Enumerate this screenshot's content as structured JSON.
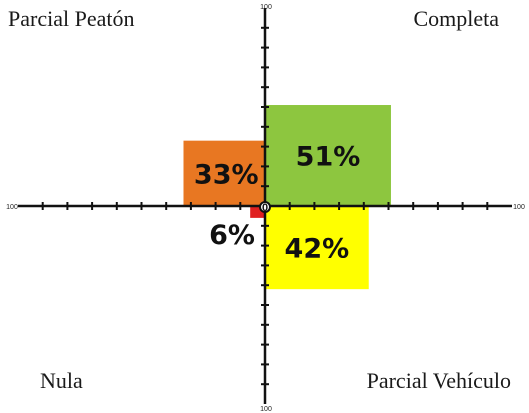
{
  "chart_data": {
    "type": "quadrant-area",
    "quadrant_labels": {
      "top_left": "Parcial Peatón",
      "top_right": "Completa",
      "bottom_left": "Nula",
      "bottom_right": "Parcial Vehículo"
    },
    "axis_range": [
      -100,
      100
    ],
    "axis_end_labels": {
      "top": "100",
      "bottom": "100",
      "left": "100",
      "right": "100"
    },
    "origin_label": "0",
    "tick_step": 10,
    "series": [
      {
        "quadrant": "top_right",
        "label": "51%",
        "value": 51,
        "x_extent": 51,
        "y_extent": 51,
        "color": "#8dc63f"
      },
      {
        "quadrant": "bottom_right",
        "label": "42%",
        "value": 42,
        "x_extent": 42,
        "y_extent": 42,
        "color": "#ffff00"
      },
      {
        "quadrant": "top_left",
        "label": "33%",
        "value": 33,
        "x_extent": 33,
        "y_extent": 33,
        "color": "#e87722"
      },
      {
        "quadrant": "bottom_left",
        "label": "6%",
        "value": 6,
        "x_extent": 6,
        "y_extent": 6,
        "color": "#e02020"
      }
    ]
  }
}
